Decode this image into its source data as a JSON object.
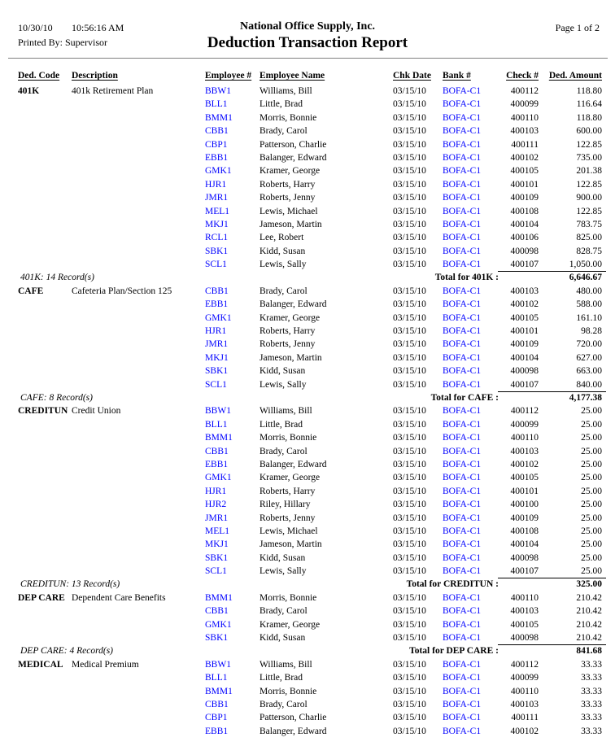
{
  "page": {
    "date": "10/30/10",
    "time": "10:56:16 AM",
    "printed_by": "Printed By: Supervisor",
    "company": "National Office Supply, Inc.",
    "report_title": "Deduction Transaction Report",
    "page_info": "Page 1 of 2"
  },
  "colors": {
    "link_blue": "#0000FF",
    "text_black": "#000000",
    "divider_gray": "#808080"
  },
  "columns": {
    "ded_code": "Ded. Code",
    "description": "Description",
    "employee_no": "Employee #",
    "employee_name": "Employee Name",
    "chk_date": "Chk Date",
    "bank_no": "Bank #",
    "check_no": "Check #",
    "ded_amount": "Ded. Amount"
  },
  "sections": [
    {
      "code": "401K",
      "description": "401k Retirement Plan",
      "rows": [
        {
          "emp": "BBW1",
          "name": "Williams, Bill",
          "chk_date": "03/15/10",
          "bank": "BOFA-C1",
          "check": "400112",
          "amount": "118.80"
        },
        {
          "emp": "BLL1",
          "name": "Little, Brad",
          "chk_date": "03/15/10",
          "bank": "BOFA-C1",
          "check": "400099",
          "amount": "116.64"
        },
        {
          "emp": "BMM1",
          "name": "Morris, Bonnie",
          "chk_date": "03/15/10",
          "bank": "BOFA-C1",
          "check": "400110",
          "amount": "118.80"
        },
        {
          "emp": "CBB1",
          "name": "Brady, Carol",
          "chk_date": "03/15/10",
          "bank": "BOFA-C1",
          "check": "400103",
          "amount": "600.00"
        },
        {
          "emp": "CBP1",
          "name": "Patterson, Charlie",
          "chk_date": "03/15/10",
          "bank": "BOFA-C1",
          "check": "400111",
          "amount": "122.85"
        },
        {
          "emp": "EBB1",
          "name": "Balanger, Edward",
          "chk_date": "03/15/10",
          "bank": "BOFA-C1",
          "check": "400102",
          "amount": "735.00"
        },
        {
          "emp": "GMK1",
          "name": "Kramer, George",
          "chk_date": "03/15/10",
          "bank": "BOFA-C1",
          "check": "400105",
          "amount": "201.38"
        },
        {
          "emp": "HJR1",
          "name": "Roberts, Harry",
          "chk_date": "03/15/10",
          "bank": "BOFA-C1",
          "check": "400101",
          "amount": "122.85"
        },
        {
          "emp": "JMR1",
          "name": "Roberts, Jenny",
          "chk_date": "03/15/10",
          "bank": "BOFA-C1",
          "check": "400109",
          "amount": "900.00"
        },
        {
          "emp": "MEL1",
          "name": "Lewis, Michael",
          "chk_date": "03/15/10",
          "bank": "BOFA-C1",
          "check": "400108",
          "amount": "122.85"
        },
        {
          "emp": "MKJ1",
          "name": "Jameson, Martin",
          "chk_date": "03/15/10",
          "bank": "BOFA-C1",
          "check": "400104",
          "amount": "783.75"
        },
        {
          "emp": "RCL1",
          "name": "Lee, Robert",
          "chk_date": "03/15/10",
          "bank": "BOFA-C1",
          "check": "400106",
          "amount": "825.00"
        },
        {
          "emp": "SBK1",
          "name": "Kidd, Susan",
          "chk_date": "03/15/10",
          "bank": "BOFA-C1",
          "check": "400098",
          "amount": "828.75"
        },
        {
          "emp": "SCL1",
          "name": "Lewis, Sally",
          "chk_date": "03/15/10",
          "bank": "BOFA-C1",
          "check": "400107",
          "amount": "1,050.00"
        }
      ],
      "footer": {
        "records": "401K: 14 Record(s)",
        "total_label": "Total for 401K :",
        "total": "6,646.67"
      }
    },
    {
      "code": "CAFE",
      "description": "Cafeteria Plan/Section 125",
      "rows": [
        {
          "emp": "CBB1",
          "name": "Brady, Carol",
          "chk_date": "03/15/10",
          "bank": "BOFA-C1",
          "check": "400103",
          "amount": "480.00"
        },
        {
          "emp": "EBB1",
          "name": "Balanger, Edward",
          "chk_date": "03/15/10",
          "bank": "BOFA-C1",
          "check": "400102",
          "amount": "588.00"
        },
        {
          "emp": "GMK1",
          "name": "Kramer, George",
          "chk_date": "03/15/10",
          "bank": "BOFA-C1",
          "check": "400105",
          "amount": "161.10"
        },
        {
          "emp": "HJR1",
          "name": "Roberts, Harry",
          "chk_date": "03/15/10",
          "bank": "BOFA-C1",
          "check": "400101",
          "amount": "98.28"
        },
        {
          "emp": "JMR1",
          "name": "Roberts, Jenny",
          "chk_date": "03/15/10",
          "bank": "BOFA-C1",
          "check": "400109",
          "amount": "720.00"
        },
        {
          "emp": "MKJ1",
          "name": "Jameson, Martin",
          "chk_date": "03/15/10",
          "bank": "BOFA-C1",
          "check": "400104",
          "amount": "627.00"
        },
        {
          "emp": "SBK1",
          "name": "Kidd, Susan",
          "chk_date": "03/15/10",
          "bank": "BOFA-C1",
          "check": "400098",
          "amount": "663.00"
        },
        {
          "emp": "SCL1",
          "name": "Lewis, Sally",
          "chk_date": "03/15/10",
          "bank": "BOFA-C1",
          "check": "400107",
          "amount": "840.00"
        }
      ],
      "footer": {
        "records": "CAFE: 8 Record(s)",
        "total_label": "Total for CAFE :",
        "total": "4,177.38"
      }
    },
    {
      "code": "CREDITUN",
      "description": "Credit Union",
      "rows": [
        {
          "emp": "BBW1",
          "name": "Williams, Bill",
          "chk_date": "03/15/10",
          "bank": "BOFA-C1",
          "check": "400112",
          "amount": "25.00"
        },
        {
          "emp": "BLL1",
          "name": "Little, Brad",
          "chk_date": "03/15/10",
          "bank": "BOFA-C1",
          "check": "400099",
          "amount": "25.00"
        },
        {
          "emp": "BMM1",
          "name": "Morris, Bonnie",
          "chk_date": "03/15/10",
          "bank": "BOFA-C1",
          "check": "400110",
          "amount": "25.00"
        },
        {
          "emp": "CBB1",
          "name": "Brady, Carol",
          "chk_date": "03/15/10",
          "bank": "BOFA-C1",
          "check": "400103",
          "amount": "25.00"
        },
        {
          "emp": "EBB1",
          "name": "Balanger, Edward",
          "chk_date": "03/15/10",
          "bank": "BOFA-C1",
          "check": "400102",
          "amount": "25.00"
        },
        {
          "emp": "GMK1",
          "name": "Kramer, George",
          "chk_date": "03/15/10",
          "bank": "BOFA-C1",
          "check": "400105",
          "amount": "25.00"
        },
        {
          "emp": "HJR1",
          "name": "Roberts, Harry",
          "chk_date": "03/15/10",
          "bank": "BOFA-C1",
          "check": "400101",
          "amount": "25.00"
        },
        {
          "emp": "HJR2",
          "name": "Riley, Hillary",
          "chk_date": "03/15/10",
          "bank": "BOFA-C1",
          "check": "400100",
          "amount": "25.00"
        },
        {
          "emp": "JMR1",
          "name": "Roberts, Jenny",
          "chk_date": "03/15/10",
          "bank": "BOFA-C1",
          "check": "400109",
          "amount": "25.00"
        },
        {
          "emp": "MEL1",
          "name": "Lewis, Michael",
          "chk_date": "03/15/10",
          "bank": "BOFA-C1",
          "check": "400108",
          "amount": "25.00"
        },
        {
          "emp": "MKJ1",
          "name": "Jameson, Martin",
          "chk_date": "03/15/10",
          "bank": "BOFA-C1",
          "check": "400104",
          "amount": "25.00"
        },
        {
          "emp": "SBK1",
          "name": "Kidd, Susan",
          "chk_date": "03/15/10",
          "bank": "BOFA-C1",
          "check": "400098",
          "amount": "25.00"
        },
        {
          "emp": "SCL1",
          "name": "Lewis, Sally",
          "chk_date": "03/15/10",
          "bank": "BOFA-C1",
          "check": "400107",
          "amount": "25.00"
        }
      ],
      "footer": {
        "records": "CREDITUN: 13 Record(s)",
        "total_label": "Total for CREDITUN :",
        "total": "325.00"
      }
    },
    {
      "code": "DEP CARE",
      "description": "Dependent Care Benefits",
      "rows": [
        {
          "emp": "BMM1",
          "name": "Morris, Bonnie",
          "chk_date": "03/15/10",
          "bank": "BOFA-C1",
          "check": "400110",
          "amount": "210.42"
        },
        {
          "emp": "CBB1",
          "name": "Brady, Carol",
          "chk_date": "03/15/10",
          "bank": "BOFA-C1",
          "check": "400103",
          "amount": "210.42"
        },
        {
          "emp": "GMK1",
          "name": "Kramer, George",
          "chk_date": "03/15/10",
          "bank": "BOFA-C1",
          "check": "400105",
          "amount": "210.42"
        },
        {
          "emp": "SBK1",
          "name": "Kidd, Susan",
          "chk_date": "03/15/10",
          "bank": "BOFA-C1",
          "check": "400098",
          "amount": "210.42"
        }
      ],
      "footer": {
        "records": "DEP CARE: 4 Record(s)",
        "total_label": "Total for DEP CARE :",
        "total": "841.68"
      }
    },
    {
      "code": "MEDICAL",
      "description": "Medical Premium",
      "rows": [
        {
          "emp": "BBW1",
          "name": "Williams, Bill",
          "chk_date": "03/15/10",
          "bank": "BOFA-C1",
          "check": "400112",
          "amount": "33.33"
        },
        {
          "emp": "BLL1",
          "name": "Little, Brad",
          "chk_date": "03/15/10",
          "bank": "BOFA-C1",
          "check": "400099",
          "amount": "33.33"
        },
        {
          "emp": "BMM1",
          "name": "Morris, Bonnie",
          "chk_date": "03/15/10",
          "bank": "BOFA-C1",
          "check": "400110",
          "amount": "33.33"
        },
        {
          "emp": "CBB1",
          "name": "Brady, Carol",
          "chk_date": "03/15/10",
          "bank": "BOFA-C1",
          "check": "400103",
          "amount": "33.33"
        },
        {
          "emp": "CBP1",
          "name": "Patterson, Charlie",
          "chk_date": "03/15/10",
          "bank": "BOFA-C1",
          "check": "400111",
          "amount": "33.33"
        },
        {
          "emp": "EBB1",
          "name": "Balanger, Edward",
          "chk_date": "03/15/10",
          "bank": "BOFA-C1",
          "check": "400102",
          "amount": "33.33"
        }
      ],
      "footer": null
    }
  ]
}
